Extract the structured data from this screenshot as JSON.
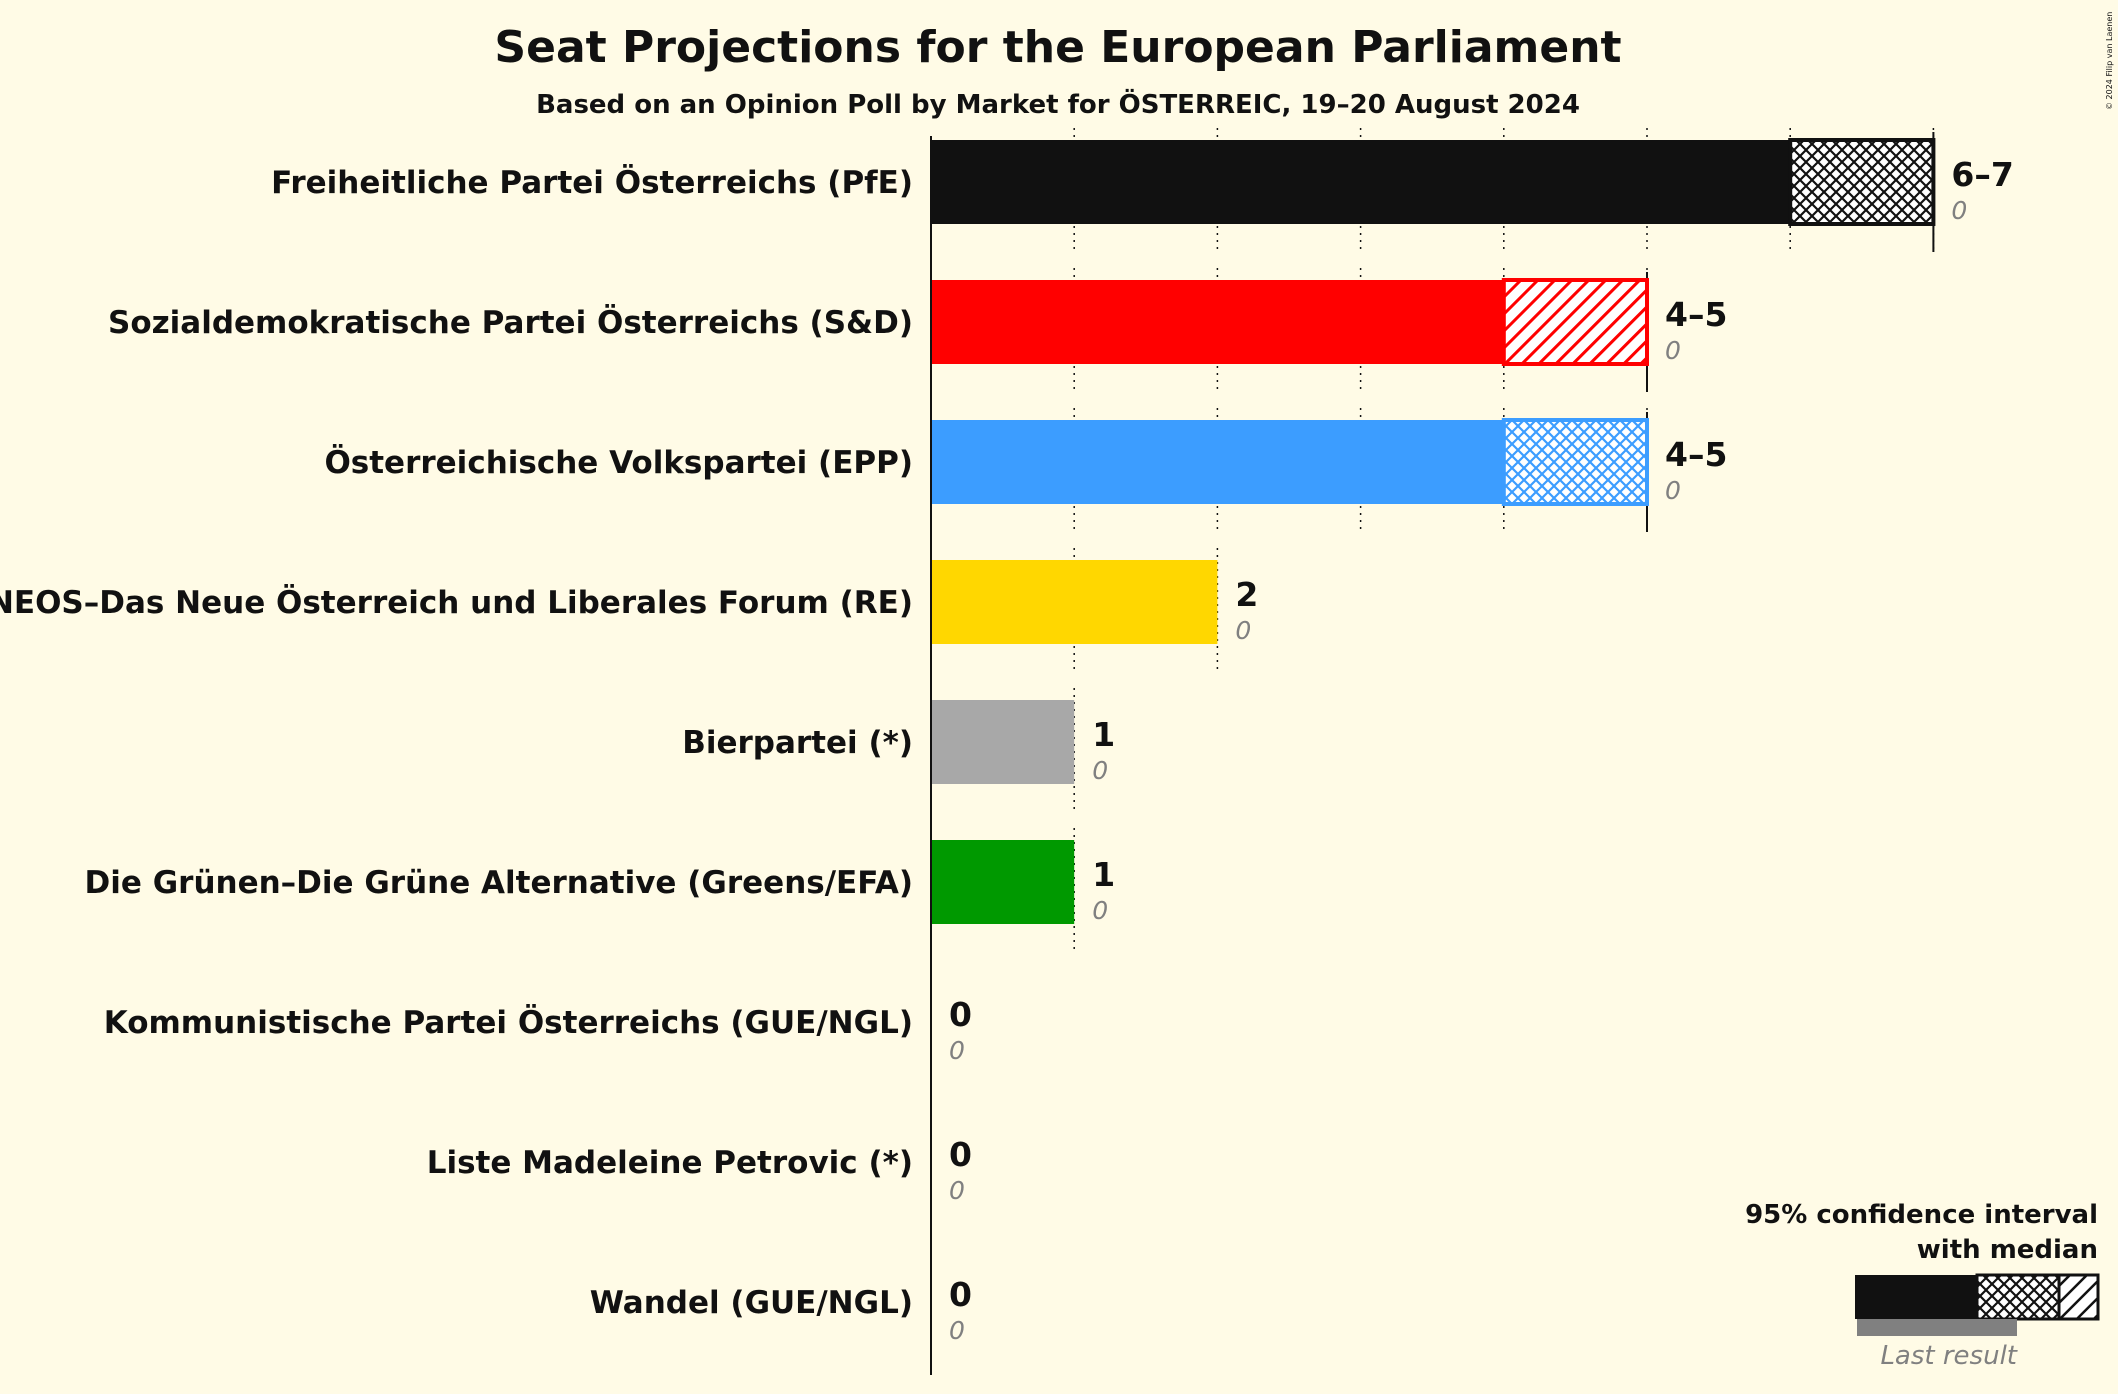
{
  "copyright": "© 2024 Filip van Laenen",
  "chart_data": {
    "type": "bar",
    "orientation": "horizontal",
    "title": "Seat Projections for the European Parliament",
    "subtitle": "Based on an Opinion Poll by Market for ÖSTERREIC, 19–20 August 2024",
    "xlim": [
      0,
      7
    ],
    "grid": "vertical dotted lines at each seat",
    "categories": [
      "Freiheitliche Partei Österreichs (PfE)",
      "Sozialdemokratische Partei Österreichs (S&D)",
      "Österreichische Volkspartei (EPP)",
      "NEOS–Das Neue Österreich und Liberales Forum (RE)",
      "Bierpartei (*)",
      "Die Grünen–Die Grüne Alternative (Greens/EFA)",
      "Kommunistische Partei Österreichs (GUE/NGL)",
      "Liste Madeleine Petrovic (*)",
      "Wandel (GUE/NGL)"
    ],
    "series": [
      {
        "name": "Lower bound",
        "values": [
          6,
          4,
          4,
          2,
          1,
          1,
          0,
          0,
          0
        ]
      },
      {
        "name": "Upper bound",
        "values": [
          7,
          5,
          5,
          2,
          1,
          1,
          0,
          0,
          0
        ]
      },
      {
        "name": "Last result",
        "values": [
          0,
          0,
          0,
          0,
          0,
          0,
          0,
          0,
          0
        ]
      }
    ],
    "range_labels": [
      "6–7",
      "4–5",
      "4–5",
      "2",
      "1",
      "1",
      "0",
      "0",
      "0"
    ],
    "last_result_labels": [
      "0",
      "0",
      "0",
      "0",
      "0",
      "0",
      "0",
      "0",
      "0"
    ],
    "colors": [
      "#111111",
      "#ff0000",
      "#3c9dff",
      "#ffd700",
      "#a8a8a8",
      "#009900",
      "#990000",
      "#c0c0c0",
      "#800000"
    ],
    "hatch_styles": [
      "crosshatch",
      "diagonal",
      "crosshatch",
      "none",
      "none",
      "none",
      "none",
      "none",
      "none"
    ],
    "legend": {
      "position": "bottom-right",
      "ci_label_line1": "95% confidence interval",
      "ci_label_line2": "with median",
      "last_result_label": "Last result"
    }
  }
}
